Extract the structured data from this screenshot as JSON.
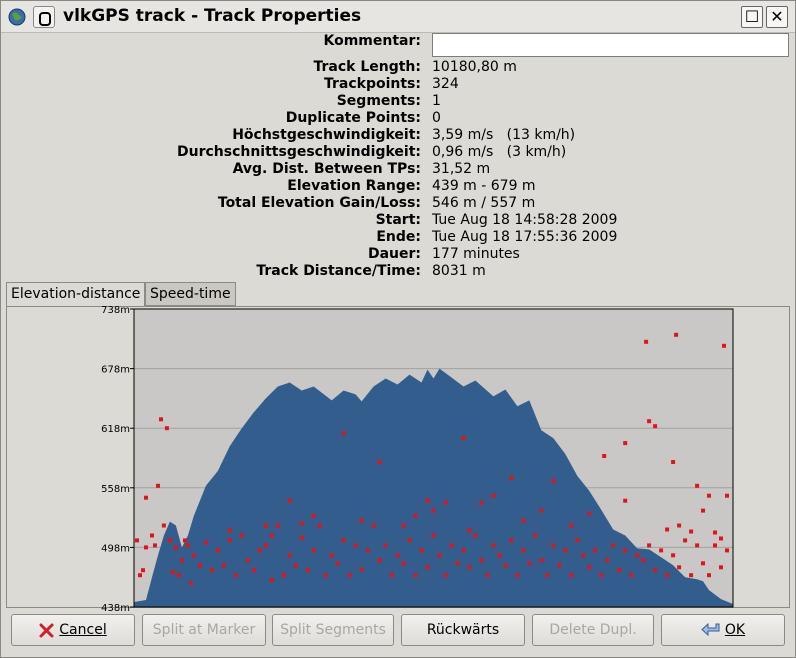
{
  "window": {
    "title": "vlkGPS track - Track Properties",
    "max_glyph": "☐",
    "close_glyph": "✕"
  },
  "properties": [
    {
      "label": "Track Length:",
      "value": "10180,80 m"
    },
    {
      "label": "Trackpoints:",
      "value": "324"
    },
    {
      "label": "Segments:",
      "value": "1"
    },
    {
      "label": "Duplicate Points:",
      "value": "0"
    },
    {
      "label": "Höchstgeschwindigkeit:",
      "value": "3,59 m/s   (13 km/h)"
    },
    {
      "label": "Durchschnittsgeschwindigkeit:",
      "value": "0,96 m/s   (3 km/h)"
    },
    {
      "label": "Avg. Dist. Between TPs:",
      "value": "31,52 m"
    },
    {
      "label": "Elevation Range:",
      "value": "439 m - 679 m"
    },
    {
      "label": "Total Elevation Gain/Loss:",
      "value": "546 m / 557 m"
    },
    {
      "label": "Start:",
      "value": "Tue Aug 18 14:58:28 2009"
    },
    {
      "label": "Ende:",
      "value": "Tue Aug 18 17:55:36 2009"
    },
    {
      "label": "Dauer:",
      "value": "177 minutes"
    },
    {
      "label": "Track Distance/Time:",
      "value": "8031 m"
    }
  ],
  "kommentar": {
    "label": "Kommentar:",
    "value": ""
  },
  "tabs": [
    {
      "label": "Elevation-distance",
      "active": true
    },
    {
      "label": "Speed-time",
      "active": false
    }
  ],
  "chart_data": {
    "type": "area",
    "title": "",
    "xlabel": "",
    "ylabel": "",
    "ylim": [
      438,
      738
    ],
    "y_ticks": [
      "738m",
      "678m",
      "618m",
      "558m",
      "498m",
      "438m"
    ],
    "tick_values": [
      738,
      678,
      618,
      558,
      498,
      438
    ],
    "elevation_profile": [
      [
        0,
        443
      ],
      [
        0.02,
        445
      ],
      [
        0.03,
        468
      ],
      [
        0.04,
        490
      ],
      [
        0.05,
        510
      ],
      [
        0.06,
        524
      ],
      [
        0.07,
        520
      ],
      [
        0.08,
        498
      ],
      [
        0.09,
        510
      ],
      [
        0.1,
        530
      ],
      [
        0.11,
        545
      ],
      [
        0.12,
        560
      ],
      [
        0.14,
        575
      ],
      [
        0.16,
        600
      ],
      [
        0.18,
        618
      ],
      [
        0.2,
        634
      ],
      [
        0.22,
        648
      ],
      [
        0.24,
        660
      ],
      [
        0.26,
        664
      ],
      [
        0.28,
        656
      ],
      [
        0.3,
        660
      ],
      [
        0.33,
        646
      ],
      [
        0.35,
        656
      ],
      [
        0.37,
        652
      ],
      [
        0.38,
        645
      ],
      [
        0.4,
        660
      ],
      [
        0.42,
        668
      ],
      [
        0.44,
        662
      ],
      [
        0.46,
        672
      ],
      [
        0.48,
        664
      ],
      [
        0.49,
        677
      ],
      [
        0.5,
        668
      ],
      [
        0.51,
        678
      ],
      [
        0.53,
        669
      ],
      [
        0.55,
        660
      ],
      [
        0.57,
        666
      ],
      [
        0.6,
        650
      ],
      [
        0.62,
        657
      ],
      [
        0.64,
        640
      ],
      [
        0.66,
        646
      ],
      [
        0.68,
        616
      ],
      [
        0.7,
        608
      ],
      [
        0.72,
        592
      ],
      [
        0.74,
        570
      ],
      [
        0.76,
        555
      ],
      [
        0.78,
        536
      ],
      [
        0.8,
        516
      ],
      [
        0.82,
        510
      ],
      [
        0.84,
        497
      ],
      [
        0.86,
        496
      ],
      [
        0.88,
        488
      ],
      [
        0.9,
        480
      ],
      [
        0.92,
        468
      ],
      [
        0.94,
        466
      ],
      [
        0.95,
        464
      ],
      [
        0.96,
        455
      ],
      [
        0.98,
        446
      ],
      [
        1.0,
        441
      ]
    ],
    "series": [
      {
        "name": "",
        "type": "area",
        "color": "#335d8c"
      },
      {
        "name": "",
        "type": "scatter",
        "color": "#e0141a"
      }
    ],
    "speed_points": [
      [
        0.005,
        505
      ],
      [
        0.01,
        470
      ],
      [
        0.015,
        475
      ],
      [
        0.02,
        498
      ],
      [
        0.03,
        510
      ],
      [
        0.035,
        500
      ],
      [
        0.04,
        560
      ],
      [
        0.045,
        627
      ],
      [
        0.05,
        520
      ],
      [
        0.055,
        618
      ],
      [
        0.06,
        505
      ],
      [
        0.065,
        473
      ],
      [
        0.07,
        498
      ],
      [
        0.075,
        470
      ],
      [
        0.08,
        485
      ],
      [
        0.085,
        505
      ],
      [
        0.09,
        500
      ],
      [
        0.095,
        462
      ],
      [
        0.1,
        490
      ],
      [
        0.11,
        480
      ],
      [
        0.12,
        503
      ],
      [
        0.13,
        475
      ],
      [
        0.14,
        495
      ],
      [
        0.15,
        480
      ],
      [
        0.16,
        505
      ],
      [
        0.17,
        470
      ],
      [
        0.18,
        510
      ],
      [
        0.19,
        485
      ],
      [
        0.2,
        475
      ],
      [
        0.21,
        495
      ],
      [
        0.22,
        500
      ],
      [
        0.23,
        465
      ],
      [
        0.24,
        520
      ],
      [
        0.25,
        470
      ],
      [
        0.26,
        490
      ],
      [
        0.27,
        480
      ],
      [
        0.28,
        508
      ],
      [
        0.29,
        475
      ],
      [
        0.3,
        495
      ],
      [
        0.31,
        520
      ],
      [
        0.32,
        470
      ],
      [
        0.33,
        490
      ],
      [
        0.34,
        482
      ],
      [
        0.35,
        505
      ],
      [
        0.36,
        470
      ],
      [
        0.37,
        500
      ],
      [
        0.38,
        476
      ],
      [
        0.39,
        495
      ],
      [
        0.4,
        520
      ],
      [
        0.41,
        485
      ],
      [
        0.42,
        500
      ],
      [
        0.43,
        470
      ],
      [
        0.44,
        490
      ],
      [
        0.45,
        482
      ],
      [
        0.46,
        505
      ],
      [
        0.47,
        470
      ],
      [
        0.48,
        495
      ],
      [
        0.49,
        478
      ],
      [
        0.5,
        510
      ],
      [
        0.51,
        490
      ],
      [
        0.52,
        470
      ],
      [
        0.53,
        500
      ],
      [
        0.54,
        482
      ],
      [
        0.55,
        495
      ],
      [
        0.56,
        478
      ],
      [
        0.57,
        510
      ],
      [
        0.58,
        485
      ],
      [
        0.59,
        470
      ],
      [
        0.6,
        500
      ],
      [
        0.61,
        490
      ],
      [
        0.62,
        480
      ],
      [
        0.63,
        505
      ],
      [
        0.64,
        470
      ],
      [
        0.65,
        495
      ],
      [
        0.66,
        482
      ],
      [
        0.67,
        510
      ],
      [
        0.68,
        485
      ],
      [
        0.69,
        470
      ],
      [
        0.7,
        500
      ],
      [
        0.71,
        480
      ],
      [
        0.72,
        495
      ],
      [
        0.73,
        470
      ],
      [
        0.74,
        505
      ],
      [
        0.75,
        490
      ],
      [
        0.76,
        478
      ],
      [
        0.77,
        495
      ],
      [
        0.78,
        470
      ],
      [
        0.79,
        485
      ],
      [
        0.8,
        500
      ],
      [
        0.81,
        475
      ],
      [
        0.82,
        495
      ],
      [
        0.83,
        470
      ],
      [
        0.84,
        490
      ],
      [
        0.85,
        485
      ],
      [
        0.86,
        500
      ],
      [
        0.87,
        475
      ],
      [
        0.88,
        495
      ],
      [
        0.89,
        470
      ],
      [
        0.9,
        490
      ],
      [
        0.91,
        478
      ],
      [
        0.92,
        505
      ],
      [
        0.93,
        470
      ],
      [
        0.94,
        500
      ],
      [
        0.95,
        482
      ],
      [
        0.96,
        470
      ],
      [
        0.97,
        500
      ],
      [
        0.98,
        478
      ],
      [
        0.99,
        495
      ],
      [
        0.35,
        613
      ],
      [
        0.41,
        584
      ],
      [
        0.52,
        543
      ],
      [
        0.55,
        608
      ],
      [
        0.58,
        543
      ],
      [
        0.63,
        568
      ],
      [
        0.68,
        535
      ],
      [
        0.7,
        565
      ],
      [
        0.76,
        532
      ],
      [
        0.82,
        545
      ],
      [
        0.86,
        625
      ],
      [
        0.9,
        584
      ],
      [
        0.98,
        507
      ],
      [
        0.02,
        548
      ],
      [
        0.26,
        545
      ],
      [
        0.3,
        530
      ],
      [
        0.23,
        510
      ],
      [
        0.45,
        520
      ],
      [
        0.6,
        550
      ],
      [
        0.65,
        525
      ],
      [
        0.49,
        545
      ],
      [
        0.73,
        520
      ],
      [
        0.87,
        620
      ],
      [
        0.89,
        516
      ],
      [
        0.93,
        514
      ],
      [
        0.96,
        550
      ],
      [
        0.97,
        513
      ],
      [
        0.99,
        550
      ],
      [
        0.95,
        535
      ],
      [
        0.91,
        520
      ],
      [
        0.94,
        560
      ],
      [
        0.855,
        705
      ],
      [
        0.905,
        712
      ],
      [
        0.985,
        701
      ],
      [
        0.785,
        590
      ],
      [
        0.82,
        603
      ],
      [
        0.5,
        535
      ],
      [
        0.56,
        515
      ],
      [
        0.47,
        530
      ],
      [
        0.38,
        525
      ],
      [
        0.28,
        522
      ],
      [
        0.16,
        515
      ],
      [
        0.22,
        520
      ]
    ]
  },
  "buttons": [
    {
      "label": "Cancel",
      "enabled": true,
      "icon": "cancel-x-icon"
    },
    {
      "label": "Split at Marker",
      "enabled": false
    },
    {
      "label": "Split Segments",
      "enabled": false
    },
    {
      "label": "Rückwärts",
      "enabled": true
    },
    {
      "label": "Delete Dupl.",
      "enabled": false
    },
    {
      "label": "OK",
      "enabled": true,
      "icon": "ok-arrow-icon"
    }
  ],
  "colors": {
    "plot_bg": "#c9c8c6",
    "area": "#335d8c",
    "points": "#e0141a",
    "grid": "#a2a19e"
  }
}
